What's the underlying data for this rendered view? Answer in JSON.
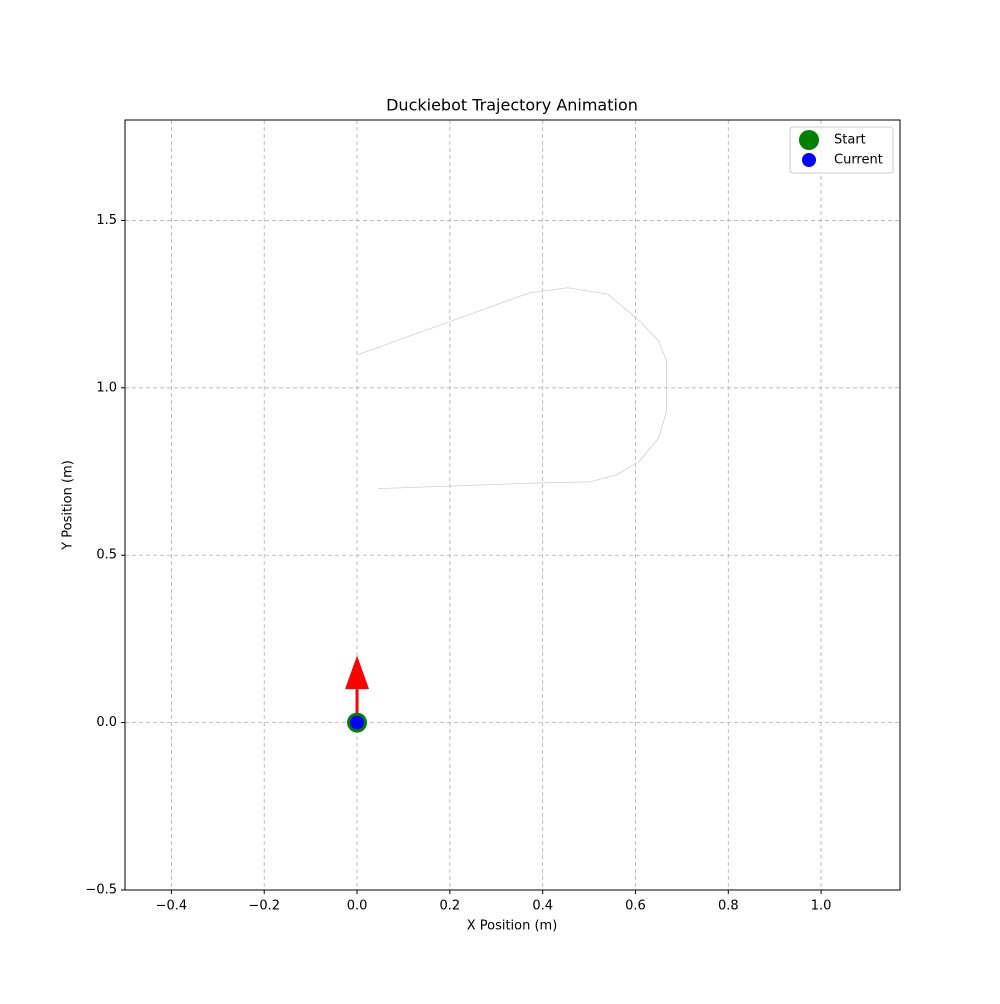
{
  "chart_data": {
    "type": "line",
    "title": "Duckiebot Trajectory Animation",
    "x_label": "X Position (m)",
    "y_label": "Y Position (m)",
    "xlim": [
      -0.5,
      1.17
    ],
    "ylim": [
      -0.5,
      1.8
    ],
    "xticks": [
      {
        "value": -0.4,
        "label": "−0.4"
      },
      {
        "value": -0.2,
        "label": "−0.2"
      },
      {
        "value": 0,
        "label": "0.0"
      },
      {
        "value": 0.2,
        "label": "0.2"
      },
      {
        "value": 0.4,
        "label": "0.4"
      },
      {
        "value": 0.6,
        "label": "0.6"
      },
      {
        "value": 0.8,
        "label": "0.8"
      },
      {
        "value": 1.0,
        "label": "1.0"
      }
    ],
    "yticks": [
      {
        "value": -0.5,
        "label": "−0.5"
      },
      {
        "value": 0,
        "label": "0.0"
      },
      {
        "value": 0.5,
        "label": "0.5"
      },
      {
        "value": 1.0,
        "label": "1.0"
      },
      {
        "value": 1.5,
        "label": "1.5"
      }
    ],
    "grid": true,
    "legend": "upper right",
    "series": [
      {
        "kind": "line",
        "color": "#d0d0d0",
        "x": [
          0.0,
          0.372,
          0.454,
          0.54,
          0.609,
          0.65,
          0.667,
          0.667,
          0.65,
          0.609,
          0.56,
          0.501,
          0.394,
          0.045
        ],
        "values": [
          1.098,
          1.284,
          1.299,
          1.28,
          1.2,
          1.14,
          1.08,
          0.931,
          0.85,
          0.782,
          0.74,
          0.719,
          0.716,
          0.699
        ]
      },
      {
        "kind": "scatter",
        "name": "Start",
        "color": "green",
        "size": 10,
        "x": [
          0
        ],
        "values": [
          0
        ]
      },
      {
        "kind": "scatter",
        "name": "Current",
        "color": "blue",
        "size": 7,
        "x": [
          0
        ],
        "values": [
          0
        ]
      }
    ],
    "arrow": {
      "x": 0,
      "y": 0,
      "dx": 0,
      "dy": 0.2,
      "color": "red"
    }
  }
}
